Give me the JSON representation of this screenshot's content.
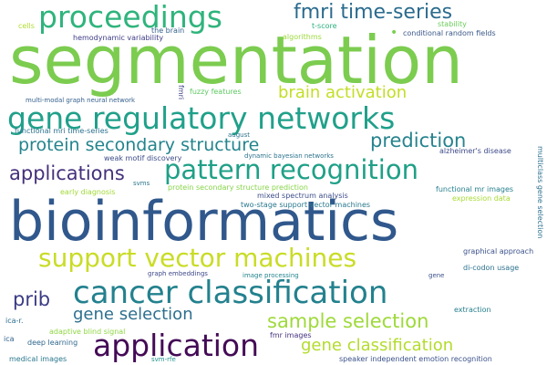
{
  "words": [
    {
      "text": "segmentation",
      "color": "#7ccc50"
    },
    {
      "text": "bioinformatics",
      "color": "#30588c"
    },
    {
      "text": "gene regulatory networks",
      "color": "#20a08a"
    },
    {
      "text": "cancer classification",
      "color": "#23818e"
    },
    {
      "text": "proceedings",
      "color": "#2fb47c"
    },
    {
      "text": "pattern recognition",
      "color": "#1fa087"
    },
    {
      "text": "application",
      "color": "#440a56"
    },
    {
      "text": "support vector machines",
      "color": "#c9dc26"
    },
    {
      "text": "fmri time-series",
      "color": "#2a6b8e"
    },
    {
      "text": "prediction",
      "color": "#26838e"
    },
    {
      "text": "protein secondary structure",
      "color": "#23848d"
    },
    {
      "text": "applications",
      "color": "#45307b"
    },
    {
      "text": "brain activation",
      "color": "#c3de26"
    },
    {
      "text": "sample selection",
      "color": "#9ed93a"
    },
    {
      "text": "gene classification",
      "color": "#b3dc2c"
    },
    {
      "text": "gene selection",
      "color": "#2d6f8e"
    },
    {
      "text": "prib",
      "color": "#3b3b84"
    },
    {
      "text": "cells",
      "color": "#b0dd2f"
    },
    {
      "text": "hemodynamic variability",
      "color": "#3f3c86"
    },
    {
      "text": "the brain",
      "color": "#34618c"
    },
    {
      "text": "algorithms",
      "color": "#9cd93b"
    },
    {
      "text": "t-score",
      "color": "#2ab07f"
    },
    {
      "text": "stability",
      "color": "#6ccc5c"
    },
    {
      "text": "conditional random fields",
      "color": "#3b5889"
    },
    {
      "text": "multi-modal graph neural network",
      "color": "#355f8d"
    },
    {
      "text": "fmri",
      "color": "#414487"
    },
    {
      "text": "fuzzy features",
      "color": "#5ec962"
    },
    {
      "text": "functional mri time-series",
      "color": "#2c728e"
    },
    {
      "text": "august",
      "color": "#2c728e"
    },
    {
      "text": "alzheimer's disease",
      "color": "#3e4a89"
    },
    {
      "text": "weak motif discovery",
      "color": "#3e4c8a"
    },
    {
      "text": "dynamic bayesian networks",
      "color": "#2c728e"
    },
    {
      "text": "svms",
      "color": "#2b758e"
    },
    {
      "text": "protein secondary structure prediction",
      "color": "#86d549"
    },
    {
      "text": "early diagnosis",
      "color": "#a2da37"
    },
    {
      "text": "mixed spectrum analysis",
      "color": "#3d4e8a"
    },
    {
      "text": "two-stage support vector machines",
      "color": "#29788e"
    },
    {
      "text": "functional mr images",
      "color": "#27808e"
    },
    {
      "text": "expression data",
      "color": "#a8db34"
    },
    {
      "text": "multiclass gene selection",
      "color": "#2d708e"
    },
    {
      "text": "graphical approach",
      "color": "#3b528b"
    },
    {
      "text": "di-codon usage",
      "color": "#2c718e"
    },
    {
      "text": "graph embeddings",
      "color": "#3e4989"
    },
    {
      "text": "image processing",
      "color": "#25858e"
    },
    {
      "text": "gene",
      "color": "#3b528b"
    },
    {
      "text": "extraction",
      "color": "#277f8e"
    },
    {
      "text": "ica-r.",
      "color": "#2e6e8e"
    },
    {
      "text": "adaptive blind signal",
      "color": "#8fd744"
    },
    {
      "text": "fmr images",
      "color": "#46337f"
    },
    {
      "text": "ica",
      "color": "#33638d"
    },
    {
      "text": "deep learning",
      "color": "#31688e"
    },
    {
      "text": "medical images",
      "color": "#2a778e"
    },
    {
      "text": "svm-rfe",
      "color": "#21918c"
    },
    {
      "text": "speaker independent emotion recognition",
      "color": "#3b528b"
    },
    {
      "text": "•",
      "color": "#7ad151"
    }
  ]
}
